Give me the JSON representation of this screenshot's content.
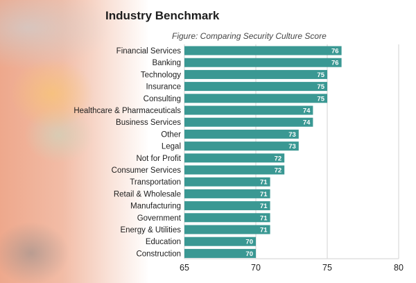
{
  "header": {
    "title": "Industry Benchmark"
  },
  "chart_data": {
    "type": "bar",
    "orientation": "horizontal",
    "title": "Figure: Comparing Security Culture Score",
    "categories": [
      "Financial Services",
      "Banking",
      "Technology",
      "Insurance",
      "Consulting",
      "Healthcare & Pharmaceuticals",
      "Business Services",
      "Other",
      "Legal",
      "Not for Profit",
      "Consumer Services",
      "Transportation",
      "Retail & Wholesale",
      "Manufacturing",
      "Government",
      "Energy & Utilities",
      "Education",
      "Construction"
    ],
    "values": [
      76,
      76,
      75,
      75,
      75,
      74,
      74,
      73,
      73,
      72,
      72,
      71,
      71,
      71,
      71,
      71,
      70,
      70
    ],
    "xlim": [
      65,
      80
    ],
    "xticks": [
      65,
      70,
      75,
      80
    ],
    "grid": true,
    "bar_color": "#3a9893",
    "xlabel": "",
    "ylabel": ""
  }
}
